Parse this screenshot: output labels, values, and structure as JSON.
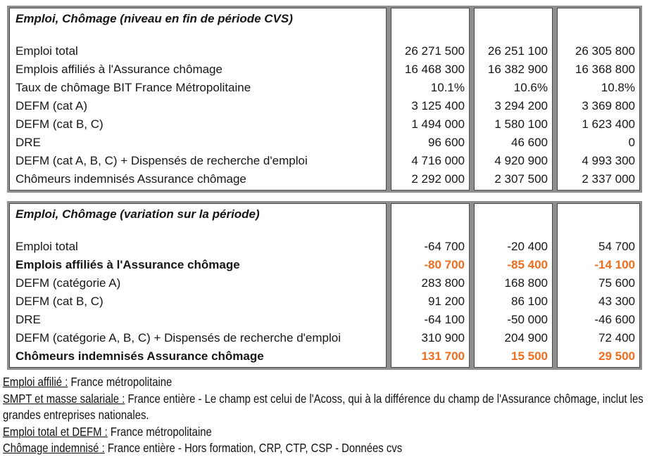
{
  "colors": {
    "frame_gray": "#8e8e8e",
    "cell_border": "#474747",
    "text": "#161616",
    "highlight_orange": "#ed6e1e"
  },
  "tables": [
    {
      "title": "Emploi, Chômage (niveau en fin de période CVS)",
      "rows": [
        {
          "label": "Emploi total",
          "values": [
            "26 271 500",
            "26 251 100",
            "26 305 800"
          ],
          "emphasis": false
        },
        {
          "label": "Emplois affiliés à l'Assurance chômage",
          "values": [
            "16 468 300",
            "16 382 900",
            "16 368 800"
          ],
          "emphasis": false
        },
        {
          "label": "Taux de chômage BIT France Métropolitaine",
          "values": [
            "10.1%",
            "10.6%",
            "10.8%"
          ],
          "emphasis": false
        },
        {
          "label": "DEFM (cat A)",
          "values": [
            "3 125 400",
            "3 294 200",
            "3 369 800"
          ],
          "emphasis": false
        },
        {
          "label": "DEFM (cat B, C)",
          "values": [
            "1 494 000",
            "1 580 100",
            "1 623 400"
          ],
          "emphasis": false
        },
        {
          "label": "DRE",
          "values": [
            "96 600",
            "46 600",
            "0"
          ],
          "emphasis": false
        },
        {
          "label": "DEFM (cat A, B, C) + Dispensés de recherche d'emploi",
          "values": [
            "4 716 000",
            "4 920 900",
            "4 993 300"
          ],
          "emphasis": false
        },
        {
          "label": "Chômeurs indemnisés Assurance chômage",
          "values": [
            "2 292 000",
            "2 307 500",
            "2 337 000"
          ],
          "emphasis": false
        }
      ]
    },
    {
      "title": "Emploi, Chômage (variation sur la période)",
      "rows": [
        {
          "label": "Emploi total",
          "values": [
            "-64 700",
            "-20 400",
            "54 700"
          ],
          "emphasis": false
        },
        {
          "label": "Emplois affiliés à l'Assurance chômage",
          "values": [
            "-80 700",
            "-85 400",
            "-14 100"
          ],
          "emphasis": true
        },
        {
          "label": "DEFM (catégorie A)",
          "values": [
            "283 800",
            "168 800",
            "75 600"
          ],
          "emphasis": false
        },
        {
          "label": "DEFM (cat B, C)",
          "values": [
            "91 200",
            "86 100",
            "43 300"
          ],
          "emphasis": false
        },
        {
          "label": "DRE",
          "values": [
            "-64 100",
            "-50 000",
            "-46 600"
          ],
          "emphasis": false
        },
        {
          "label": "DEFM (catégorie A, B, C) + Dispensés de recherche d'emploi",
          "values": [
            "310 900",
            "204 900",
            "72 400"
          ],
          "emphasis": false
        },
        {
          "label": "Chômeurs indemnisés Assurance chômage",
          "values": [
            "131 700",
            "15 500",
            "29 500"
          ],
          "emphasis": true
        }
      ]
    }
  ],
  "footnotes": [
    {
      "term": "Emploi affilié :",
      "text": " France métropolitaine"
    },
    {
      "term": "SMPT et masse salariale :",
      "text": " France entière - Le champ est celui de l'Acoss, qui à la différence du champ de l'Assurance chômage, inclut les grandes entreprises nationales."
    },
    {
      "term": "Emploi total et DEFM :",
      "text": " France métropolitaine"
    },
    {
      "term": "Chômage indemnisé :",
      "text": " France entière - Hors formation, CRP, CTP, CSP - Données cvs"
    }
  ]
}
